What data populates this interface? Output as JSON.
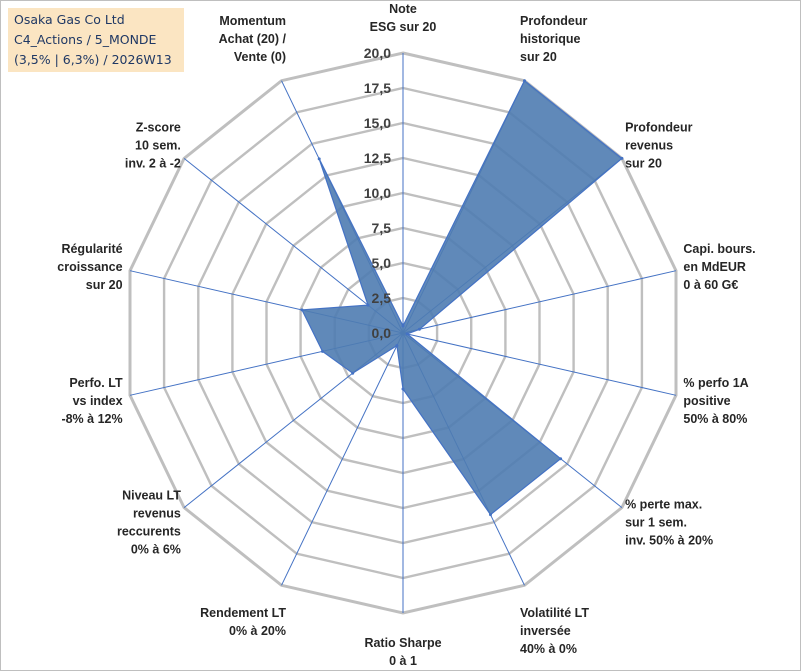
{
  "header": {
    "line1": "Osaka Gas Co Ltd",
    "line2": "C4_Actions / 5_MONDE",
    "line3": "(3,5% | 6,3%) / 2026W13"
  },
  "colors": {
    "grid": "#bfbfbf",
    "spoke": "#4472c4",
    "fill": "#4f7cb1",
    "stroke": "#4472c4"
  },
  "chart_data": {
    "type": "radar",
    "title": "Osaka Gas Co Ltd",
    "rmin": 0,
    "rmax": 20,
    "tick_step": 2.5,
    "tick_labels": [
      "0,0",
      "2,5",
      "5,0",
      "7,5",
      "10,0",
      "12,5",
      "15,0",
      "17,5",
      "20,0"
    ],
    "categories": [
      [
        "Note",
        "ESG sur 20"
      ],
      [
        "Profondeur",
        "historique",
        "sur 20"
      ],
      [
        "Profondeur",
        "revenus",
        "sur 20"
      ],
      [
        "Capi. bours.",
        "en MdEUR",
        "0 à 60 G€"
      ],
      [
        "% perfo 1A",
        "positive",
        "50% à 80%"
      ],
      [
        "% perte max.",
        "sur 1 sem.",
        "inv. 50% à 20%"
      ],
      [
        "Volatilité LT",
        "inversée",
        "40% à 0%"
      ],
      [
        "Ratio Sharpe",
        "0 à 1"
      ],
      [
        "Rendement LT",
        "0% à 20%"
      ],
      [
        "Niveau LT",
        "revenus",
        "reccurents",
        "0% à 6%"
      ],
      [
        "Perfo. LT",
        "vs index",
        "-8% à 12%"
      ],
      [
        "Régularité",
        "croissance",
        "sur 20"
      ],
      [
        "Z-score",
        "10 sem.",
        "inv. 2 à -2"
      ],
      [
        "Momentum",
        "Achat (20) /",
        "Vente (0)"
      ]
    ],
    "series": [
      {
        "name": "Osaka Gas Co Ltd",
        "values": [
          0.5,
          20,
          20,
          1.2,
          0.3,
          14.4,
          14.4,
          4.0,
          1.0,
          4.6,
          5.9,
          7.4,
          3.2,
          13.8
        ]
      }
    ]
  }
}
